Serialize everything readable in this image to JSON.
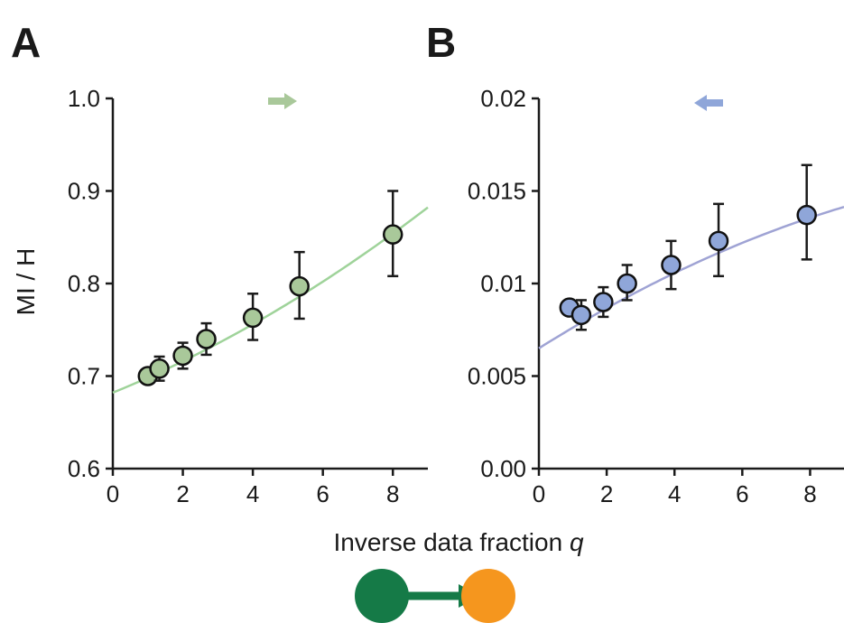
{
  "figure": {
    "panel_labels": [
      "A",
      "B"
    ],
    "ylabel": "MI / H",
    "xlabel_main": "Inverse data fraction ",
    "xlabel_var": "q"
  },
  "chart_data": [
    {
      "type": "scatter",
      "panel": "A",
      "ylabel": "MI / H",
      "xlabel": "Inverse data fraction q",
      "xlim": [
        0,
        9
      ],
      "ylim": [
        0.6,
        1.0
      ],
      "xticks": [
        0,
        2,
        4,
        6,
        8
      ],
      "xtick_labels": [
        "0",
        "2",
        "4",
        "6",
        "8"
      ],
      "yticks": [
        0.6,
        0.7,
        0.8,
        0.9,
        1.0
      ],
      "ytick_labels": [
        "0.6",
        "0.7",
        "0.8",
        "0.9",
        "1.0"
      ],
      "grid": false,
      "marker_color": "#a9c89a",
      "fit_color": "#9fd39a",
      "arrow_color": "#a9c89a",
      "arrow_direction": "right",
      "points": [
        {
          "x": 1.0,
          "y": 0.7,
          "err_low": 0.007,
          "err_high": 0.007
        },
        {
          "x": 1.33,
          "y": 0.708,
          "err_low": 0.013,
          "err_high": 0.013
        },
        {
          "x": 2.0,
          "y": 0.722,
          "err_low": 0.014,
          "err_high": 0.014
        },
        {
          "x": 2.67,
          "y": 0.74,
          "err_low": 0.017,
          "err_high": 0.017
        },
        {
          "x": 4.0,
          "y": 0.763,
          "err_low": 0.024,
          "err_high": 0.026
        },
        {
          "x": 5.33,
          "y": 0.797,
          "err_low": 0.035,
          "err_high": 0.037
        },
        {
          "x": 8.0,
          "y": 0.853,
          "err_low": 0.045,
          "err_high": 0.047
        }
      ],
      "fit": {
        "x": [
          0,
          9
        ],
        "intercept": 0.682,
        "slope_start": 0.0155,
        "curvature": 0.00075
      }
    },
    {
      "type": "scatter",
      "panel": "B",
      "xlabel": "Inverse data fraction q",
      "xlim": [
        0,
        9
      ],
      "ylim": [
        0.0,
        0.02
      ],
      "xticks": [
        0,
        2,
        4,
        6,
        8
      ],
      "xtick_labels": [
        "0",
        "2",
        "4",
        "6",
        "8"
      ],
      "yticks": [
        0.0,
        0.005,
        0.01,
        0.015,
        0.02
      ],
      "ytick_labels": [
        "0.00",
        "0.005",
        "0.01",
        "0.015",
        "0.02"
      ],
      "grid": false,
      "marker_color": "#8fa6d9",
      "fit_color": "#9fa3d4",
      "arrow_color": "#8fa6d9",
      "arrow_direction": "left",
      "points": [
        {
          "x": 0.9,
          "y": 0.0087,
          "err_low": 0.0003,
          "err_high": 0.0003
        },
        {
          "x": 1.25,
          "y": 0.0083,
          "err_low": 0.0008,
          "err_high": 0.0008
        },
        {
          "x": 1.9,
          "y": 0.009,
          "err_low": 0.0008,
          "err_high": 0.0008
        },
        {
          "x": 2.6,
          "y": 0.01,
          "err_low": 0.0009,
          "err_high": 0.001
        },
        {
          "x": 3.9,
          "y": 0.011,
          "err_low": 0.0013,
          "err_high": 0.0013
        },
        {
          "x": 5.3,
          "y": 0.0123,
          "err_low": 0.0019,
          "err_high": 0.002
        },
        {
          "x": 7.9,
          "y": 0.0137,
          "err_low": 0.0024,
          "err_high": 0.0027
        }
      ],
      "fit": {
        "x": [
          0,
          9
        ],
        "intercept": 0.0065,
        "slope_start": 0.00115,
        "curvature": -3.35e-05
      }
    }
  ],
  "schematic": {
    "source_color": "#157a47",
    "target_color": "#f5961e",
    "arrow_color": "#157a47"
  }
}
